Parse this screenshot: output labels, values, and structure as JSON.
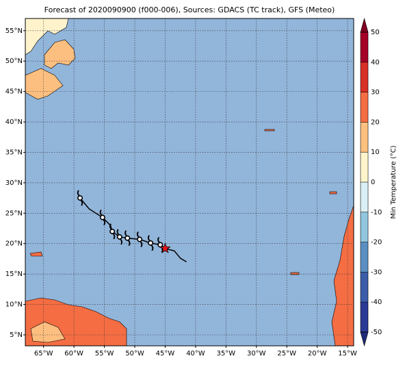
{
  "map": {
    "title": "Forecast of 2020090900 (f000-006), Sources: GDACS (TC track), GFS (Meteo)",
    "xlim": [
      -68,
      -14
    ],
    "ylim": [
      3.2,
      57
    ],
    "xticks": [
      {
        "value": -65,
        "label": "65°W"
      },
      {
        "value": -60,
        "label": "60°W"
      },
      {
        "value": -55,
        "label": "55°W"
      },
      {
        "value": -50,
        "label": "50°W"
      },
      {
        "value": -45,
        "label": "45°W"
      },
      {
        "value": -40,
        "label": "40°W"
      },
      {
        "value": -35,
        "label": "35°W"
      },
      {
        "value": -30,
        "label": "30°W"
      },
      {
        "value": -25,
        "label": "25°W"
      },
      {
        "value": -20,
        "label": "20°W"
      },
      {
        "value": -15,
        "label": "15°W"
      }
    ],
    "yticks": [
      {
        "value": 5,
        "label": "5°N"
      },
      {
        "value": 10,
        "label": "10°N"
      },
      {
        "value": 15,
        "label": "15°N"
      },
      {
        "value": 20,
        "label": "20°N"
      },
      {
        "value": 25,
        "label": "25°N"
      },
      {
        "value": 30,
        "label": "30°N"
      },
      {
        "value": 35,
        "label": "35°N"
      },
      {
        "value": 40,
        "label": "40°N"
      },
      {
        "value": 45,
        "label": "45°N"
      },
      {
        "value": 50,
        "label": "50°N"
      },
      {
        "value": 55,
        "label": "55°N"
      }
    ],
    "grid": true,
    "ocean_color": "#92b5da",
    "track": {
      "lon": [
        -59,
        -57.5,
        -55.3,
        -54,
        -53.7,
        -52.5,
        -51.2,
        -49.2,
        -47.4,
        -45.8,
        -45,
        -43.5,
        -42.5,
        -41.5
      ],
      "lat": [
        27.5,
        25.7,
        24.3,
        23,
        22,
        21.1,
        20.9,
        20.7,
        20.1,
        19.8,
        19.2,
        18.8,
        17.6,
        17
      ]
    },
    "storm_symbols": {
      "lon": [
        -59,
        -55.3,
        -53.7,
        -52.5,
        -51.2,
        -49.2,
        -47.4,
        -45.8
      ],
      "lat": [
        27.5,
        24.3,
        22,
        21.1,
        20.9,
        20.7,
        20.1,
        19.8
      ]
    },
    "current_position": {
      "lon": -45,
      "lat": 19.2,
      "color": "#e8141c"
    },
    "colorbar": {
      "label": "Min Temperature (°C)",
      "lim": [
        -50,
        50
      ],
      "ticks": [
        -50,
        -40,
        -30,
        -20,
        -10,
        0,
        10,
        20,
        30,
        40,
        50
      ],
      "colors": [
        "#2b3a94",
        "#3b5ca8",
        "#5b8fc2",
        "#92c5de",
        "#dbeff6",
        "#fff5cc",
        "#fdc07f",
        "#f46d43",
        "#d73027",
        "#a50026"
      ],
      "under_color": "#1f2a7a",
      "over_color": "#7f0020"
    }
  }
}
